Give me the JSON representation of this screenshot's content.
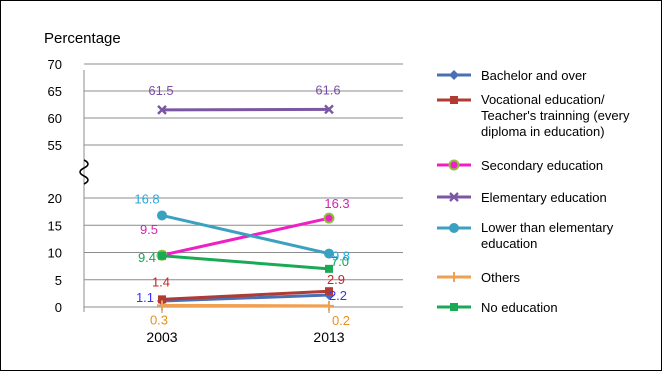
{
  "chart_data": {
    "type": "line",
    "ylabel": "Percentage",
    "categories": [
      "2003",
      "2013"
    ],
    "yticks": [
      "0",
      "5",
      "10",
      "15",
      "20",
      "55",
      "60",
      "65",
      "70"
    ],
    "y_axis_break": "between 20 and 55",
    "grid": "horizontal",
    "legend_position": "right",
    "series": [
      {
        "name": "Bachelor and over",
        "values": [
          1.1,
          2.2
        ],
        "color": "#4a6fb5",
        "marker": "diamond",
        "labels": [
          "1.1",
          "2.2"
        ],
        "label_color": "#3333ff"
      },
      {
        "name": "Vocational education/ Teacher's trainning (every diploma in education)",
        "values": [
          1.4,
          2.9
        ],
        "color": "#b03a34",
        "marker": "square",
        "labels": [
          "1.4",
          "2.9"
        ],
        "label_color": "#c0282a"
      },
      {
        "name": "Secondary education",
        "values": [
          9.5,
          16.3
        ],
        "color": "#ee1fc4",
        "marker": "circle-ring",
        "labels": [
          "9.5",
          "16.3"
        ],
        "label_color": "#d81fb2"
      },
      {
        "name": "Elementary education",
        "values": [
          61.5,
          61.6
        ],
        "color": "#7b57a3",
        "marker": "x",
        "labels": [
          "61.5",
          "61.6"
        ],
        "label_color": "#7b4fa8"
      },
      {
        "name": "Lower than elementary education",
        "values": [
          16.8,
          9.8
        ],
        "color": "#3ca0c0",
        "marker": "circle",
        "labels": [
          "16.8",
          "9.8"
        ],
        "label_color": "#29a9e0"
      },
      {
        "name": "Others",
        "values": [
          0.3,
          0.2
        ],
        "color": "#f0a050",
        "marker": "plus",
        "labels": [
          "0.3",
          "0.2"
        ],
        "label_color": "#e8901e"
      },
      {
        "name": "No education",
        "values": [
          9.4,
          7.0
        ],
        "color": "#1aaa55",
        "marker": "square",
        "labels": [
          "9.4",
          "7.0"
        ],
        "label_color": "#13a853"
      }
    ]
  }
}
